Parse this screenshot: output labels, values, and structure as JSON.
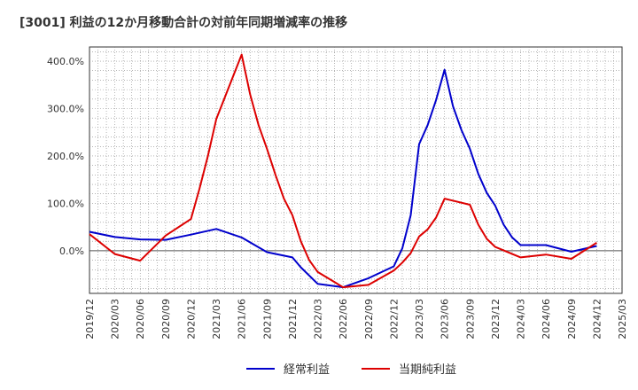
{
  "chart_data": {
    "type": "line",
    "title": "[3001]  利益の12か月移動合計の対前年同期増減率の推移",
    "xlabel": "",
    "ylabel": "",
    "ylim": [
      -90,
      430
    ],
    "yticks": [
      0,
      100,
      200,
      300,
      400
    ],
    "ytick_labels": [
      "0.0%",
      "100.0%",
      "200.0%",
      "300.0%",
      "400.0%"
    ],
    "x_start": "2019-12",
    "x_end": "2025-03",
    "xtick_labels": [
      "2019/12",
      "2020/03",
      "2020/06",
      "2020/09",
      "2020/12",
      "2021/03",
      "2021/06",
      "2021/09",
      "2021/12",
      "2022/03",
      "2022/06",
      "2022/09",
      "2022/12",
      "2023/03",
      "2023/06",
      "2023/09",
      "2023/12",
      "2024/03",
      "2024/06",
      "2024/09",
      "2024/12",
      "2025/03"
    ],
    "grid": true,
    "legend_position": "bottom",
    "series": [
      {
        "name": "経常利益",
        "color": "#0000cc",
        "points": [
          [
            "2019-12",
            40
          ],
          [
            "2020-03",
            29
          ],
          [
            "2020-06",
            24
          ],
          [
            "2020-09",
            23
          ],
          [
            "2020-12",
            34
          ],
          [
            "2021-03",
            46
          ],
          [
            "2021-06",
            28
          ],
          [
            "2021-09",
            -3
          ],
          [
            "2021-12",
            -14
          ],
          [
            "2022-01",
            -35
          ],
          [
            "2022-03",
            -70
          ],
          [
            "2022-06",
            -77
          ],
          [
            "2022-09",
            -58
          ],
          [
            "2022-12",
            -33
          ],
          [
            "2023-01",
            5
          ],
          [
            "2023-02",
            75
          ],
          [
            "2023-03",
            225
          ],
          [
            "2023-04",
            265
          ],
          [
            "2023-05",
            318
          ],
          [
            "2023-06",
            382
          ],
          [
            "2023-07",
            305
          ],
          [
            "2023-08",
            255
          ],
          [
            "2023-09",
            215
          ],
          [
            "2023-10",
            162
          ],
          [
            "2023-11",
            122
          ],
          [
            "2023-12",
            95
          ],
          [
            "2024-01",
            55
          ],
          [
            "2024-02",
            28
          ],
          [
            "2024-03",
            12
          ],
          [
            "2024-06",
            12
          ],
          [
            "2024-09",
            -2
          ],
          [
            "2024-12",
            10
          ]
        ]
      },
      {
        "name": "当期純利益",
        "color": "#dd0000",
        "points": [
          [
            "2019-12",
            35
          ],
          [
            "2020-03",
            -7
          ],
          [
            "2020-06",
            -21
          ],
          [
            "2020-09",
            32
          ],
          [
            "2020-12",
            67
          ],
          [
            "2021-01",
            130
          ],
          [
            "2021-02",
            200
          ],
          [
            "2021-03",
            278
          ],
          [
            "2021-06",
            414
          ],
          [
            "2021-07",
            330
          ],
          [
            "2021-08",
            265
          ],
          [
            "2021-09",
            215
          ],
          [
            "2021-10",
            160
          ],
          [
            "2021-11",
            110
          ],
          [
            "2021-12",
            75
          ],
          [
            "2022-01",
            20
          ],
          [
            "2022-02",
            -20
          ],
          [
            "2022-03",
            -45
          ],
          [
            "2022-06",
            -77
          ],
          [
            "2022-09",
            -72
          ],
          [
            "2022-12",
            -42
          ],
          [
            "2023-01",
            -25
          ],
          [
            "2023-02",
            -5
          ],
          [
            "2023-03",
            30
          ],
          [
            "2023-04",
            45
          ],
          [
            "2023-05",
            70
          ],
          [
            "2023-06",
            110
          ],
          [
            "2023-09",
            97
          ],
          [
            "2023-10",
            55
          ],
          [
            "2023-11",
            25
          ],
          [
            "2023-12",
            8
          ],
          [
            "2024-03",
            -14
          ],
          [
            "2024-06",
            -8
          ],
          [
            "2024-09",
            -17
          ],
          [
            "2024-12",
            17
          ]
        ]
      }
    ]
  }
}
